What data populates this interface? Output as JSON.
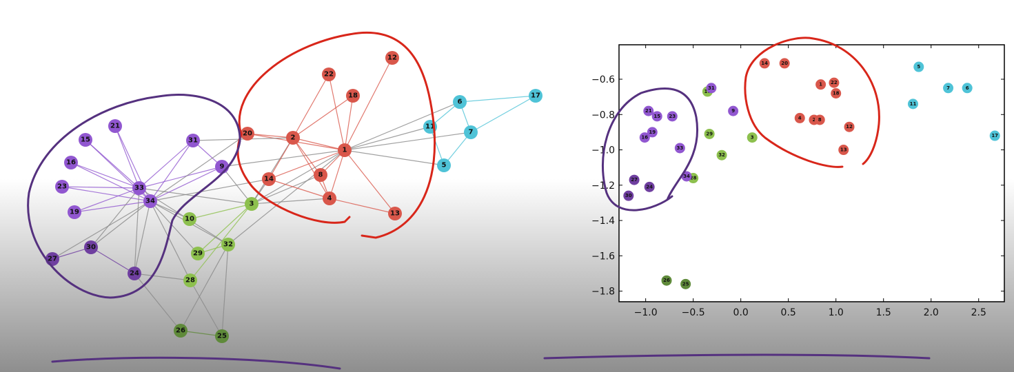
{
  "chart_data": [
    {
      "type": "network",
      "nodes": [
        "1",
        "2",
        "3",
        "4",
        "5",
        "6",
        "7",
        "8",
        "9",
        "10",
        "11",
        "12",
        "13",
        "14",
        "15",
        "16",
        "17",
        "18",
        "19",
        "20",
        "21",
        "22",
        "23",
        "24",
        "25",
        "26",
        "27",
        "28",
        "29",
        "30",
        "31",
        "32",
        "33",
        "34"
      ],
      "colors": [
        "#d9574b",
        "#d9574b",
        "#8dc04e",
        "#d9574b",
        "#4fc3d7",
        "#4fc3d7",
        "#4fc3d7",
        "#d9574b",
        "#9157d0",
        "#8dc04e",
        "#4fc3d7",
        "#d9574b",
        "#d9574b",
        "#d9574b",
        "#9157d0",
        "#9157d0",
        "#4fc3d7",
        "#d9574b",
        "#9157d0",
        "#d9574b",
        "#9157d0",
        "#d9574b",
        "#9157d0",
        "#6f3fa0",
        "#5f8a3a",
        "#5f8a3a",
        "#6f3fa0",
        "#8dc04e",
        "#8dc04e",
        "#6f3fa0",
        "#9157d0",
        "#8dc04e",
        "#9157d0",
        "#9157d0"
      ]
    },
    {
      "type": "scatter",
      "labels": [
        "1",
        "2",
        "3",
        "4",
        "5",
        "6",
        "7",
        "8",
        "9",
        "10",
        "11",
        "12",
        "13",
        "14",
        "15",
        "16",
        "17",
        "18",
        "19",
        "20",
        "21",
        "22",
        "23",
        "24",
        "25",
        "26",
        "27",
        "28",
        "29",
        "30",
        "31",
        "32",
        "33",
        "34"
      ],
      "x": [
        0.84,
        0.77,
        0.12,
        0.62,
        1.87,
        2.38,
        2.18,
        0.83,
        -0.08,
        -0.35,
        1.81,
        1.14,
        1.08,
        0.25,
        -0.88,
        -1.01,
        2.67,
        1.0,
        -0.93,
        0.46,
        -0.97,
        0.98,
        -0.72,
        -0.96,
        -0.58,
        -0.78,
        -1.12,
        -0.5,
        -0.33,
        -1.18,
        -0.31,
        -0.2,
        -0.64,
        -0.57
      ],
      "y": [
        -0.63,
        -0.83,
        -0.93,
        -0.82,
        -0.53,
        -0.65,
        -0.65,
        -0.83,
        -0.78,
        -0.67,
        -0.74,
        -0.87,
        -1.0,
        -0.51,
        -0.81,
        -0.93,
        -0.92,
        -0.68,
        -0.9,
        -0.51,
        -0.78,
        -0.62,
        -0.81,
        -1.21,
        -1.76,
        -1.74,
        -1.17,
        -1.16,
        -0.91,
        -1.26,
        -0.65,
        -1.03,
        -0.99,
        -1.15
      ],
      "colors": [
        "#d9574b",
        "#d9574b",
        "#8dc04e",
        "#d9574b",
        "#4fc3d7",
        "#4fc3d7",
        "#4fc3d7",
        "#d9574b",
        "#9157d0",
        "#8dc04e",
        "#4fc3d7",
        "#d9574b",
        "#d9574b",
        "#d9574b",
        "#9157d0",
        "#9157d0",
        "#4fc3d7",
        "#d9574b",
        "#9157d0",
        "#d9574b",
        "#9157d0",
        "#d9574b",
        "#9157d0",
        "#6f3fa0",
        "#5f8a3a",
        "#5f8a3a",
        "#6f3fa0",
        "#8dc04e",
        "#8dc04e",
        "#6f3fa0",
        "#9157d0",
        "#8dc04e",
        "#9157d0",
        "#9157d0"
      ],
      "xlim": [
        -1.28,
        2.77
      ],
      "ylim": [
        -1.86,
        -0.405
      ],
      "xticks": [
        {
          "value": -1,
          "label": "−1.0"
        },
        {
          "value": -0.5,
          "label": "−0.5"
        },
        {
          "value": 0,
          "label": "0.0"
        },
        {
          "value": 0.5,
          "label": "0.5"
        },
        {
          "value": 1,
          "label": "1.0"
        },
        {
          "value": 1.5,
          "label": "1.5"
        },
        {
          "value": 2,
          "label": "2.0"
        },
        {
          "value": 2.5,
          "label": "2.5"
        }
      ],
      "yticks": [
        {
          "value": -0.6,
          "label": "−0.6"
        },
        {
          "value": -0.8,
          "label": "−0.8"
        },
        {
          "value": -1,
          "label": "−1.0"
        },
        {
          "value": -1.2,
          "label": "−1.2"
        },
        {
          "value": -1.4,
          "label": "−1.4"
        },
        {
          "value": -1.6,
          "label": "−1.6"
        },
        {
          "value": -1.8,
          "label": "−1.8"
        }
      ]
    }
  ]
}
